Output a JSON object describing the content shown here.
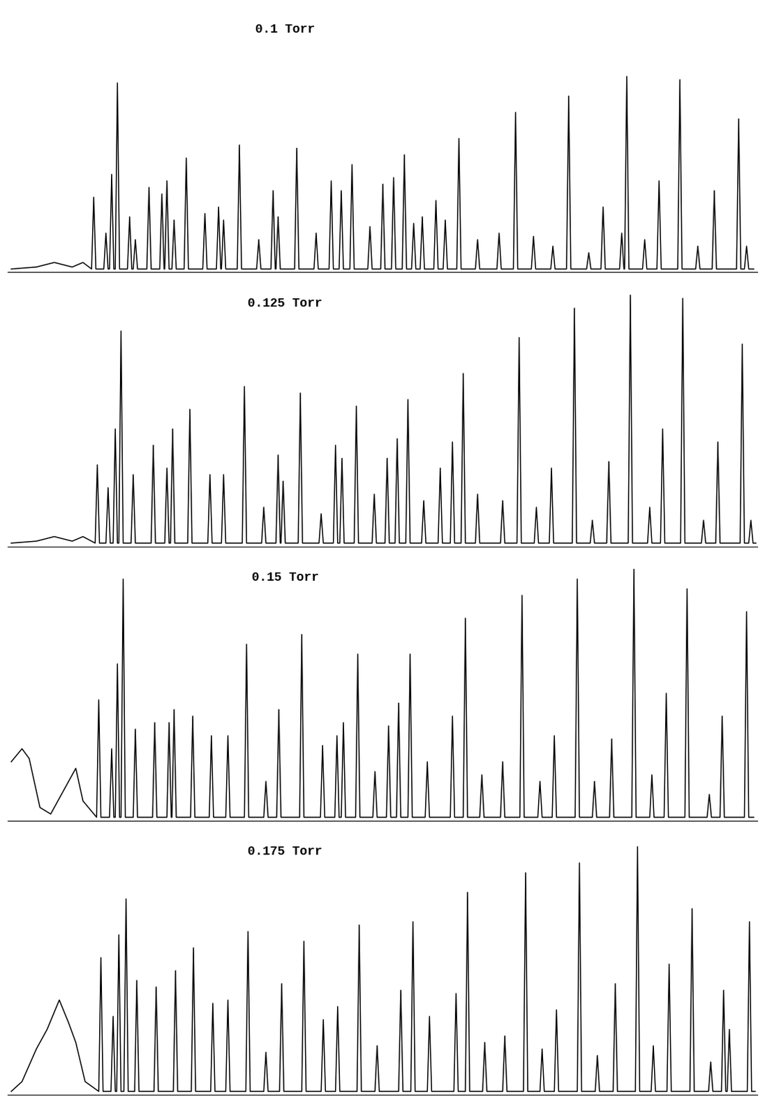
{
  "chart_data": [
    {
      "type": "line",
      "title": "0.1 Torr",
      "color": "#000000",
      "tick_labels": false,
      "grid": false,
      "xlim": [
        0,
        1045
      ],
      "ylim": [
        0,
        400
      ],
      "x": [
        5,
        40,
        65,
        90,
        105,
        117,
        120,
        123,
        134,
        137,
        140,
        142,
        145,
        148,
        150,
        153,
        156,
        167,
        170,
        173,
        175,
        178,
        181,
        194,
        197,
        200,
        212,
        215,
        218,
        219,
        222,
        225,
        229,
        232,
        235,
        246,
        249,
        252,
        272,
        275,
        278,
        291,
        294,
        297,
        298,
        301,
        304,
        320,
        323,
        326,
        347,
        350,
        353,
        367,
        370,
        373,
        374,
        377,
        380,
        400,
        403,
        406,
        427,
        430,
        433,
        448,
        451,
        454,
        462,
        465,
        468,
        477,
        480,
        483,
        502,
        505,
        508,
        520,
        523,
        526,
        535,
        538,
        541,
        550,
        553,
        556,
        563,
        566,
        569,
        575,
        578,
        581,
        594,
        597,
        600,
        607,
        610,
        613,
        626,
        629,
        632,
        652,
        655,
        658,
        682,
        685,
        688,
        705,
        708,
        711,
        730,
        733,
        736,
        757,
        760,
        763,
        779,
        782,
        785,
        807,
        810,
        813,
        827,
        830,
        833,
        853,
        856,
        859,
        860,
        863,
        866,
        885,
        888,
        891,
        905,
        908,
        911,
        934,
        937,
        940,
        959,
        962,
        965,
        982,
        985,
        988,
        1016,
        1019,
        1022,
        1027,
        1030,
        1033,
        1040
      ],
      "values": [
        5,
        8,
        15,
        8,
        15,
        5,
        115,
        5,
        5,
        60,
        5,
        5,
        150,
        5,
        5,
        290,
        5,
        5,
        85,
        5,
        5,
        50,
        5,
        5,
        130,
        5,
        5,
        120,
        5,
        5,
        140,
        5,
        5,
        80,
        5,
        5,
        175,
        5,
        5,
        90,
        5,
        5,
        100,
        5,
        5,
        80,
        5,
        5,
        195,
        5,
        5,
        50,
        5,
        5,
        125,
        5,
        5,
        85,
        5,
        5,
        190,
        5,
        5,
        60,
        5,
        5,
        140,
        5,
        5,
        125,
        5,
        5,
        165,
        5,
        5,
        70,
        5,
        5,
        135,
        5,
        5,
        145,
        5,
        5,
        180,
        5,
        5,
        75,
        5,
        5,
        85,
        5,
        5,
        110,
        5,
        5,
        80,
        5,
        5,
        205,
        5,
        5,
        50,
        5,
        5,
        60,
        5,
        5,
        245,
        5,
        5,
        55,
        5,
        5,
        40,
        5,
        5,
        270,
        5,
        5,
        30,
        5,
        5,
        100,
        5,
        5,
        60,
        5,
        5,
        300,
        5,
        5,
        50,
        5,
        5,
        140,
        5,
        5,
        295,
        5,
        5,
        40,
        5,
        5,
        125,
        5,
        5,
        235,
        5,
        5,
        40,
        5,
        5
      ]
    },
    {
      "type": "line",
      "title": "0.125 Torr",
      "color": "#000000",
      "tick_labels": false,
      "grid": false,
      "xlim": [
        0,
        1045
      ],
      "ylim": [
        0,
        400
      ],
      "x": [
        5,
        40,
        65,
        90,
        105,
        122,
        125,
        128,
        137,
        140,
        143,
        147,
        150,
        153,
        155,
        158,
        161,
        172,
        175,
        178,
        200,
        203,
        206,
        219,
        222,
        225,
        227,
        230,
        233,
        251,
        254,
        257,
        279,
        282,
        285,
        298,
        301,
        304,
        327,
        330,
        333,
        354,
        357,
        360,
        374,
        377,
        380,
        381,
        384,
        387,
        405,
        408,
        411,
        434,
        437,
        440,
        454,
        457,
        460,
        463,
        466,
        469,
        483,
        486,
        489,
        508,
        511,
        514,
        526,
        529,
        532,
        540,
        543,
        546,
        555,
        558,
        561,
        577,
        580,
        583,
        600,
        603,
        606,
        617,
        620,
        623,
        632,
        635,
        638,
        652,
        655,
        658,
        687,
        690,
        693,
        710,
        713,
        716,
        734,
        737,
        740,
        755,
        758,
        761,
        787,
        790,
        793,
        812,
        815,
        818,
        835,
        838,
        841,
        865,
        868,
        871,
        892,
        895,
        898,
        910,
        913,
        916,
        938,
        941,
        944,
        967,
        970,
        973,
        987,
        990,
        993,
        1021,
        1024,
        1027,
        1033,
        1036,
        1039,
        1043
      ],
      "values": [
        5,
        8,
        15,
        8,
        15,
        5,
        125,
        5,
        5,
        90,
        5,
        5,
        180,
        5,
        5,
        330,
        5,
        5,
        110,
        5,
        5,
        155,
        5,
        5,
        120,
        5,
        5,
        180,
        5,
        5,
        210,
        5,
        5,
        110,
        5,
        5,
        110,
        5,
        5,
        245,
        5,
        5,
        60,
        5,
        5,
        140,
        5,
        5,
        100,
        5,
        5,
        235,
        5,
        5,
        50,
        5,
        5,
        155,
        5,
        5,
        135,
        5,
        5,
        215,
        5,
        5,
        80,
        5,
        5,
        135,
        5,
        5,
        165,
        5,
        5,
        225,
        5,
        5,
        70,
        5,
        5,
        120,
        5,
        5,
        160,
        5,
        5,
        265,
        5,
        5,
        80,
        5,
        5,
        70,
        5,
        5,
        320,
        5,
        5,
        60,
        5,
        5,
        120,
        5,
        5,
        365,
        5,
        5,
        40,
        5,
        5,
        130,
        5,
        5,
        385,
        5,
        5,
        60,
        5,
        5,
        180,
        5,
        5,
        380,
        5,
        5,
        40,
        5,
        5,
        160,
        5,
        5,
        310,
        5,
        5,
        40,
        5,
        5
      ]
    },
    {
      "type": "line",
      "title": "0.15 Torr",
      "color": "#000000",
      "tick_labels": false,
      "grid": false,
      "xlim": [
        0,
        1045
      ],
      "ylim": [
        0,
        400
      ],
      "x": [
        5,
        20,
        30,
        45,
        60,
        80,
        95,
        105,
        124,
        127,
        130,
        142,
        145,
        148,
        150,
        153,
        156,
        158,
        161,
        164,
        175,
        178,
        181,
        202,
        205,
        208,
        222,
        225,
        228,
        229,
        232,
        235,
        255,
        258,
        261,
        281,
        284,
        287,
        304,
        307,
        310,
        330,
        333,
        336,
        357,
        360,
        363,
        375,
        378,
        381,
        407,
        410,
        413,
        436,
        439,
        442,
        456,
        459,
        462,
        465,
        468,
        471,
        485,
        488,
        491,
        509,
        512,
        515,
        528,
        531,
        534,
        542,
        545,
        548,
        558,
        561,
        564,
        582,
        585,
        588,
        617,
        620,
        623,
        635,
        638,
        641,
        658,
        661,
        664,
        687,
        690,
        693,
        714,
        717,
        720,
        739,
        742,
        745,
        759,
        762,
        765,
        791,
        794,
        797,
        815,
        818,
        821,
        839,
        842,
        845,
        870,
        873,
        876,
        895,
        898,
        901,
        915,
        918,
        921,
        944,
        947,
        950,
        975,
        978,
        981,
        993,
        996,
        999,
        1027,
        1030,
        1033,
        1040
      ],
      "values": [
        90,
        110,
        95,
        20,
        10,
        50,
        80,
        30,
        5,
        185,
        5,
        5,
        110,
        5,
        5,
        240,
        5,
        5,
        370,
        5,
        5,
        140,
        5,
        5,
        150,
        5,
        5,
        150,
        5,
        5,
        170,
        5,
        5,
        160,
        5,
        5,
        130,
        5,
        5,
        130,
        5,
        5,
        270,
        5,
        5,
        60,
        5,
        5,
        170,
        5,
        5,
        285,
        5,
        5,
        115,
        5,
        5,
        130,
        5,
        5,
        150,
        5,
        5,
        255,
        5,
        5,
        75,
        5,
        5,
        145,
        5,
        5,
        180,
        5,
        5,
        255,
        5,
        5,
        90,
        5,
        5,
        160,
        5,
        5,
        310,
        5,
        5,
        70,
        5,
        5,
        90,
        5,
        5,
        345,
        5,
        5,
        60,
        5,
        5,
        130,
        5,
        5,
        370,
        5,
        5,
        60,
        5,
        5,
        125,
        5,
        5,
        385,
        5,
        5,
        70,
        5,
        5,
        195,
        5,
        5,
        355,
        5,
        5,
        40,
        5,
        5,
        160,
        5,
        5,
        320,
        5,
        5
      ]
    },
    {
      "type": "line",
      "title": "0.175 Torr",
      "color": "#000000",
      "tick_labels": false,
      "grid": false,
      "xlim": [
        0,
        1045
      ],
      "ylim": [
        0,
        400
      ],
      "x": [
        5,
        20,
        40,
        55,
        72,
        85,
        95,
        108,
        127,
        130,
        133,
        144,
        147,
        150,
        152,
        155,
        158,
        162,
        165,
        168,
        177,
        180,
        183,
        204,
        207,
        210,
        231,
        234,
        237,
        256,
        259,
        262,
        283,
        286,
        289,
        304,
        307,
        310,
        332,
        335,
        338,
        357,
        360,
        363,
        379,
        382,
        385,
        410,
        413,
        416,
        437,
        440,
        443,
        457,
        460,
        463,
        487,
        490,
        493,
        512,
        515,
        518,
        545,
        548,
        551,
        562,
        565,
        568,
        585,
        588,
        591,
        622,
        625,
        628,
        638,
        641,
        644,
        662,
        665,
        668,
        690,
        693,
        696,
        719,
        722,
        725,
        742,
        745,
        748,
        762,
        765,
        768,
        794,
        797,
        800,
        819,
        822,
        825,
        844,
        847,
        850,
        875,
        878,
        881,
        897,
        900,
        903,
        919,
        922,
        925,
        951,
        954,
        957,
        977,
        980,
        983,
        995,
        998,
        1001,
        1003,
        1006,
        1009,
        1031,
        1034,
        1037,
        1042
      ],
      "values": [
        5,
        20,
        70,
        100,
        145,
        110,
        80,
        20,
        5,
        210,
        5,
        5,
        120,
        5,
        5,
        245,
        5,
        5,
        300,
        5,
        5,
        175,
        5,
        5,
        165,
        5,
        5,
        190,
        5,
        5,
        225,
        5,
        5,
        140,
        5,
        5,
        145,
        5,
        5,
        250,
        5,
        5,
        65,
        5,
        5,
        170,
        5,
        5,
        235,
        5,
        5,
        115,
        5,
        5,
        135,
        5,
        5,
        260,
        5,
        5,
        75,
        5,
        5,
        160,
        5,
        5,
        265,
        5,
        5,
        120,
        5,
        5,
        155,
        5,
        5,
        310,
        5,
        5,
        80,
        5,
        5,
        90,
        5,
        5,
        340,
        5,
        5,
        70,
        5,
        5,
        130,
        5,
        5,
        355,
        5,
        5,
        60,
        5,
        5,
        170,
        5,
        5,
        380,
        5,
        5,
        75,
        5,
        5,
        200,
        5,
        5,
        285,
        5,
        5,
        50,
        5,
        5,
        160,
        5,
        5,
        100,
        5,
        5,
        265,
        5,
        5
      ]
    }
  ]
}
